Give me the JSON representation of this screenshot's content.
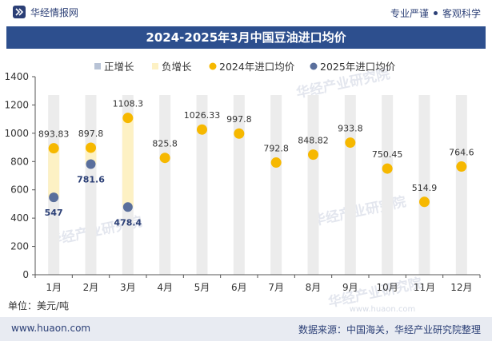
{
  "header": {
    "brand": "华经情报网",
    "tagline_left": "专业严谨",
    "tagline_right": "客观科学"
  },
  "footer": {
    "website": "www.huaon.com",
    "source": "数据来源：中国海关，华经产业研究院整理"
  },
  "unit_label": "单位：美元/吨",
  "watermark": "华经产业研究院",
  "watermark_url": "www.huaon.com",
  "colors": {
    "title_bg": "#2d4f8e",
    "positive": "#b8c3d6",
    "negative": "#fdf1c4",
    "series_2024": "#f6b800",
    "series_2025": "#5a6f9c",
    "column_bg": "#ececec"
  },
  "chart_data": {
    "type": "line",
    "title": "2024-2025年3月中国豆油进口均价",
    "categories": [
      "1月",
      "2月",
      "3月",
      "4月",
      "5月",
      "6月",
      "7月",
      "8月",
      "9月",
      "10月",
      "11月",
      "12月"
    ],
    "ylim": [
      0,
      1400
    ],
    "yticks": [
      0,
      200,
      400,
      600,
      800,
      1000,
      1200,
      1400
    ],
    "legend_position": "top",
    "legend": [
      "正增长",
      "负增长",
      "2024年进口均价",
      "2025年进口均价"
    ],
    "series": [
      {
        "name": "2024年进口均价",
        "values": [
          893.83,
          897.8,
          1108.3,
          825.8,
          1026.33,
          997.8,
          792.8,
          848.82,
          933.8,
          750.45,
          514.9,
          764.6
        ],
        "labels": [
          "893.83",
          "897.8",
          "1108.3",
          "825.8",
          "1026.33",
          "997.8",
          "792.8",
          "848.82",
          "933.8",
          "750.45",
          "514.9",
          "764.6"
        ]
      },
      {
        "name": "2025年进口均价",
        "values": [
          547,
          781.6,
          478.4,
          null,
          null,
          null,
          null,
          null,
          null,
          null,
          null,
          null
        ],
        "labels": [
          "547",
          "781.6",
          "478.4",
          "",
          "",
          "",
          "",
          "",
          "",
          "",
          "",
          ""
        ]
      }
    ],
    "grid": false
  }
}
